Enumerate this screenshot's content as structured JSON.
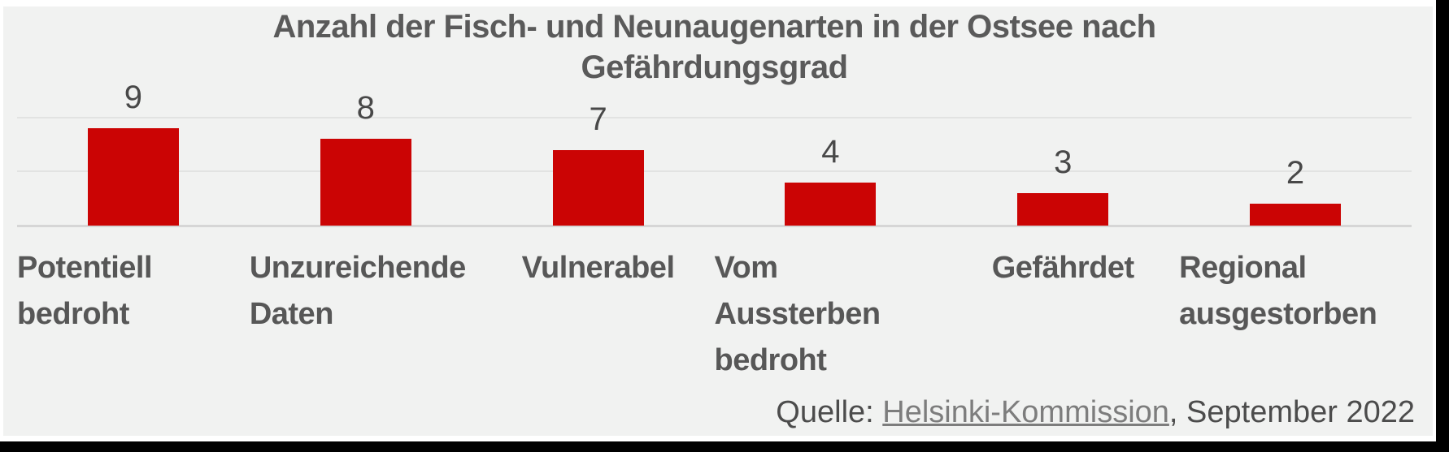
{
  "title_lines": [
    "Anzahl der Fisch- und Neunaugenarten in der Ostsee nach",
    "Gefährdungsgrad"
  ],
  "source": {
    "prefix": "Quelle: ",
    "link_text": "Helsinki-Kommission",
    "suffix": ", September 2022"
  },
  "colors": {
    "bar": "#cb0404",
    "background": "#f1f2f1",
    "title_text": "#5a5a5a",
    "value_text": "#484848",
    "category_text": "#575757",
    "link_text": "#7d7d7d"
  },
  "chart_data": {
    "type": "bar",
    "title": "Anzahl der Fisch- und Neunaugenarten in der Ostsee nach Gefährdungsgrad",
    "categories": [
      "Potentiell bedroht",
      "Unzureichende Daten",
      "Vulnerabel",
      "Vom Aussterben bedroht",
      "Gefährdet",
      "Regional ausgestorben"
    ],
    "values": [
      9,
      8,
      7,
      4,
      3,
      2
    ],
    "value_labels_shown": true,
    "xlabel": "",
    "ylabel": "",
    "ylim": [
      0,
      10
    ],
    "gridline_values": [
      0,
      5,
      10
    ],
    "grid": "horizontal",
    "legend": "none",
    "source_text": "Quelle: Helsinki-Kommission, September 2022"
  }
}
